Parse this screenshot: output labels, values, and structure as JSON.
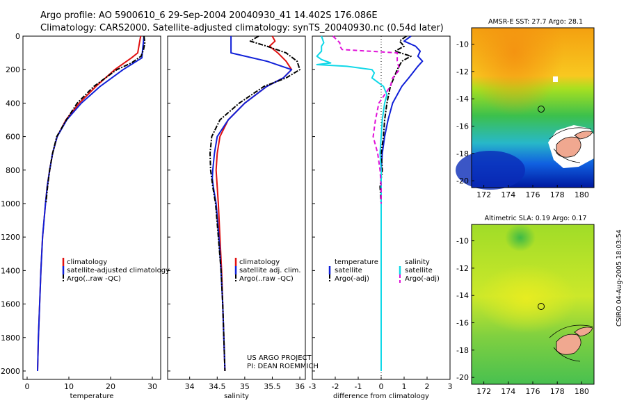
{
  "header": {
    "line1": "Argo profile: AO 5900610_6 29-Sep-2004 20040930_41 14.402S 176.086E",
    "line2": "Climatology: CARS2000. Satellite-adjusted climatology: synTS_20040930.nc (0.54d later)"
  },
  "side_credit": "CSIRO 04-Aug-2005 18:03:54",
  "colors": {
    "red": "#e01010",
    "blue": "#1020d8",
    "black": "#000000",
    "cyan": "#10d8e8",
    "magenta": "#e010d8"
  },
  "chart_data": [
    {
      "id": "temperature",
      "type": "line",
      "xlabel": "temperature",
      "ylabel": "",
      "xlim": [
        -1,
        32
      ],
      "ylim": [
        2050,
        0
      ],
      "xticks": [
        0,
        10,
        20,
        30
      ],
      "yticks": [
        0,
        200,
        400,
        600,
        800,
        1000,
        1200,
        1400,
        1600,
        1800,
        2000
      ],
      "legend": {
        "placement": "lower-center",
        "entries": [
          "climatology",
          "satellite-adjusted climatology",
          "Argo(..raw -QC)"
        ]
      },
      "series": [
        {
          "name": "climatology",
          "color": "red",
          "style": "solid",
          "depth": [
            0,
            100,
            130,
            200,
            300,
            400,
            500,
            600,
            700,
            800,
            900,
            1000,
            1200,
            1400,
            1600,
            1800,
            2000
          ],
          "values": [
            27.2,
            26.5,
            25,
            21,
            16.5,
            12.5,
            9.3,
            7.2,
            6.1,
            5.4,
            4.8,
            4.4,
            3.7,
            3.3,
            3.0,
            2.7,
            2.5
          ]
        },
        {
          "name": "satellite-adjusted climatology",
          "color": "blue",
          "style": "solid",
          "depth": [
            0,
            100,
            130,
            200,
            300,
            400,
            500,
            600,
            700,
            800,
            900,
            1000,
            1200,
            1400,
            1600,
            1800,
            2000
          ],
          "values": [
            28.0,
            27.6,
            27.5,
            23,
            17.5,
            13,
            9.5,
            7.2,
            6.1,
            5.4,
            4.8,
            4.4,
            3.7,
            3.3,
            3.0,
            2.7,
            2.5
          ]
        },
        {
          "name": "Argo(..raw -QC)",
          "color": "black",
          "style": "dashdot",
          "depth": [
            0,
            40,
            80,
            120,
            160,
            200,
            300,
            400,
            500,
            600,
            700,
            800,
            900,
            1000
          ],
          "values": [
            28.0,
            28.2,
            27.9,
            27.3,
            25,
            21.5,
            16,
            12,
            9.4,
            7.1,
            6.1,
            5.4,
            4.9,
            4.5
          ]
        }
      ]
    },
    {
      "id": "salinity",
      "type": "line",
      "xlabel": "salinity",
      "ylabel": "",
      "xlim": [
        33.6,
        36.1
      ],
      "ylim": [
        2050,
        0
      ],
      "xticks": [
        34,
        34.5,
        35,
        35.5,
        36
      ],
      "yticks": [
        0,
        200,
        400,
        600,
        800,
        1000,
        1200,
        1400,
        1600,
        1800,
        2000
      ],
      "legend": {
        "placement": "lower-center",
        "entries": [
          "climatology",
          "satellite adj. clim.",
          "Argo(..raw -QC)"
        ]
      },
      "annotations": [
        "US ARGO PROJECT",
        "PI: DEAN ROEMMICH"
      ],
      "series": [
        {
          "name": "climatology",
          "color": "red",
          "style": "solid",
          "depth": [
            0,
            30,
            60,
            100,
            150,
            200,
            250,
            300,
            400,
            500,
            600,
            700,
            800,
            900,
            1000,
            1200,
            1400,
            1600,
            1800,
            2000
          ],
          "values": [
            35.5,
            35.55,
            35.45,
            35.6,
            35.75,
            35.85,
            35.7,
            35.4,
            35.0,
            34.7,
            34.55,
            34.5,
            34.48,
            34.5,
            34.52,
            34.55,
            34.58,
            34.6,
            34.62,
            34.64
          ]
        },
        {
          "name": "satellite adj. clim.",
          "color": "blue",
          "style": "solid",
          "depth": [
            0,
            100,
            150,
            200,
            250,
            300,
            400,
            500,
            600,
            700,
            800,
            850,
            900,
            1000,
            1200,
            1400,
            1600,
            1800,
            2000
          ],
          "values": [
            34.75,
            34.75,
            35.4,
            35.85,
            35.7,
            35.4,
            35.0,
            34.7,
            34.5,
            34.45,
            34.42,
            34.41,
            34.43,
            34.48,
            34.53,
            34.57,
            34.6,
            34.62,
            34.64
          ]
        },
        {
          "name": "Argo(..raw -QC)",
          "color": "black",
          "style": "dashdot",
          "depth": [
            0,
            30,
            60,
            100,
            150,
            200,
            250,
            300,
            400,
            500,
            600,
            700,
            800,
            900,
            1000,
            1200,
            1400,
            1600,
            1800,
            2000
          ],
          "values": [
            35.25,
            35.1,
            35.4,
            35.75,
            35.95,
            36.0,
            35.75,
            35.35,
            34.9,
            34.55,
            34.4,
            34.37,
            34.38,
            34.42,
            34.47,
            34.52,
            34.57,
            34.6,
            34.62,
            34.64
          ]
        }
      ]
    },
    {
      "id": "difference",
      "type": "line",
      "xlabel": "difference from climatology",
      "ylabel": "",
      "xlim": [
        -3,
        3
      ],
      "ylim": [
        2050,
        0
      ],
      "xticks": [
        -3,
        -2,
        -1,
        0,
        1,
        2,
        3
      ],
      "yticks": [
        0,
        200,
        400,
        600,
        800,
        1000,
        1200,
        1400,
        1600,
        1800,
        2000
      ],
      "legend": {
        "placement": "lower-center",
        "entries": [
          "temperature",
          "satellite",
          "Argo(-adj)",
          "salinity",
          "satellite",
          "Argo(-adj)"
        ]
      },
      "series": [
        {
          "name": "temperature satellite",
          "color": "blue",
          "style": "solid",
          "depth": [
            0,
            30,
            60,
            90,
            120,
            150,
            180,
            250,
            300,
            400,
            500,
            600,
            700,
            800,
            900,
            1000,
            1200,
            1400,
            1600,
            1800,
            2000
          ],
          "values": [
            1.3,
            1.0,
            1.5,
            1.7,
            1.6,
            1.8,
            1.6,
            1.2,
            0.9,
            0.5,
            0.3,
            0.15,
            0.05,
            0,
            0,
            0,
            0,
            0,
            0,
            0,
            0
          ]
        },
        {
          "name": "temperature Argo(-adj)",
          "color": "black",
          "style": "dashdot",
          "depth": [
            0,
            30,
            60,
            90,
            120,
            150,
            200,
            300,
            400,
            500,
            600,
            700,
            800,
            900,
            1000
          ],
          "values": [
            1.1,
            0.8,
            1.0,
            0.6,
            1.3,
            0.9,
            0.7,
            0.4,
            0.25,
            0.15,
            0.1,
            0.0,
            0.05,
            -0.05,
            0
          ]
        },
        {
          "name": "salinity satellite",
          "color": "cyan",
          "style": "solid",
          "depth": [
            0,
            40,
            60,
            90,
            120,
            140,
            160,
            170,
            180,
            200,
            220,
            250,
            300,
            350,
            400,
            500,
            600,
            700,
            800,
            1000,
            1400,
            1800,
            2000
          ],
          "values": [
            -2.6,
            -2.5,
            -2.6,
            -2.6,
            -2.8,
            -2.6,
            -2.2,
            -2.8,
            -1.5,
            -0.4,
            -0.3,
            -0.4,
            0.1,
            0.25,
            0.15,
            0.05,
            0.0,
            -0.05,
            0.0,
            0.0,
            0.0,
            0.0,
            0.0
          ]
        },
        {
          "name": "salinity Argo(-adj)",
          "color": "magenta",
          "style": "dashed",
          "depth": [
            0,
            40,
            60,
            80,
            100,
            150,
            200,
            250,
            300,
            400,
            500,
            600,
            700,
            800,
            900,
            1000
          ],
          "values": [
            -2.1,
            -1.8,
            -1.8,
            -1.7,
            0.7,
            0.7,
            0.8,
            0.5,
            0.4,
            -0.1,
            -0.25,
            -0.35,
            -0.15,
            -0.05,
            0.0,
            0.0
          ]
        }
      ]
    },
    {
      "id": "sst-map",
      "type": "heatmap",
      "title": "AMSR-E SST: 27.7 Argo: 28.1",
      "xlim": [
        171,
        181
      ],
      "ylim": [
        -20.5,
        -8.8
      ],
      "xticks": [
        172,
        174,
        176,
        178,
        180
      ],
      "yticks": [
        -10,
        -12,
        -14,
        -16,
        -18,
        -20
      ],
      "marker": {
        "lon": 176.086,
        "lat": -14.402
      }
    },
    {
      "id": "sla-map",
      "type": "heatmap",
      "title": "Altimetric SLA: 0.19 Argo: 0.17",
      "xlim": [
        171,
        181
      ],
      "ylim": [
        -20.5,
        -8.8
      ],
      "xticks": [
        172,
        174,
        176,
        178,
        180
      ],
      "yticks": [
        -10,
        -12,
        -14,
        -16,
        -18,
        -20
      ],
      "marker": {
        "lon": 176.086,
        "lat": -14.402
      }
    }
  ]
}
